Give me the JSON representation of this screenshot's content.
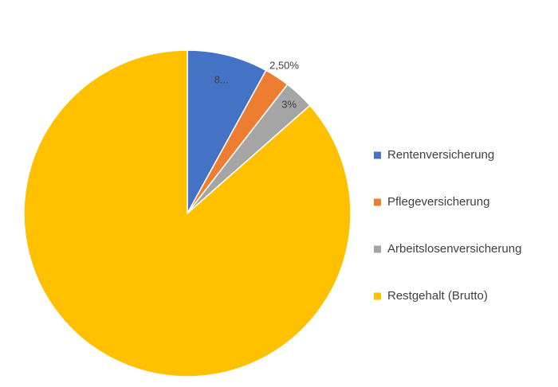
{
  "chart_data": {
    "type": "pie",
    "categories": [
      "Rentenversicherung",
      "Pflegeversicherung",
      "Arbeitslosenversicherung",
      "Restgehalt (Brutto)"
    ],
    "values": [
      8,
      2.5,
      3,
      86.5
    ],
    "value_labels": [
      "8...",
      "2,50%",
      "3%",
      null
    ],
    "colors": [
      "#4472c4",
      "#ed7d31",
      "#a5a5a5",
      "#ffc000"
    ],
    "legend": "right"
  }
}
